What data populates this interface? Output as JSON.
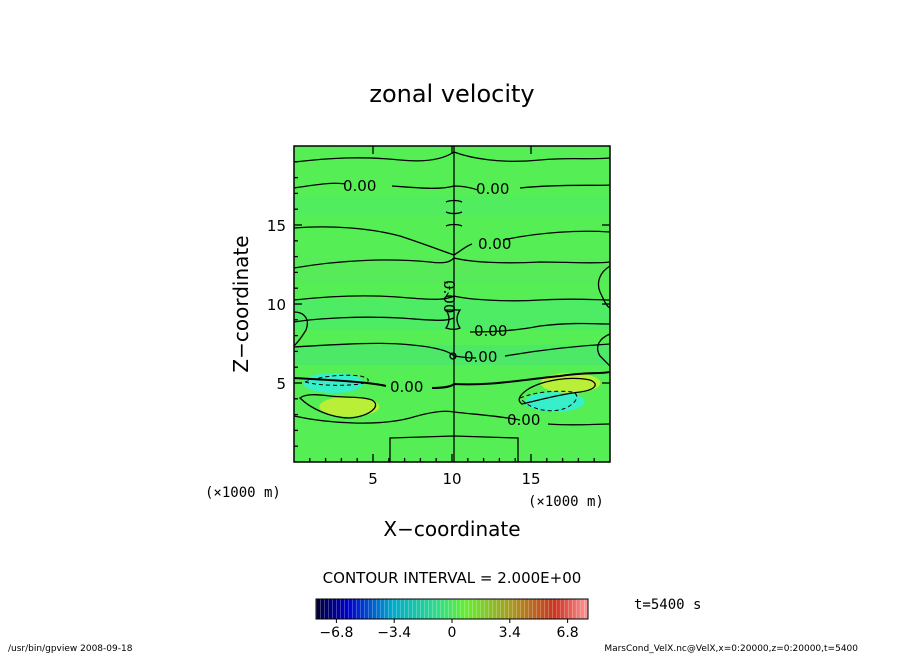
{
  "chart_data": {
    "type": "heatmap",
    "title": "zonal velocity",
    "xlabel": "X−coordinate",
    "ylabel": "Z−coordinate",
    "x_unit": "(×1000 m)",
    "y_unit": "(×1000 m)",
    "xlim": [
      0,
      20
    ],
    "ylim": [
      0,
      20
    ],
    "x_ticks": [
      5,
      10,
      15
    ],
    "y_ticks": [
      5,
      10,
      15
    ],
    "contour_interval_text": "CONTOUR INTERVAL = 2.000E+00",
    "contour_label": "0.00",
    "time_text": "t=5400 s",
    "colorbar": {
      "range": [
        -8,
        8
      ],
      "ticks": [
        -6.8,
        -3.4,
        0,
        3.4,
        6.8
      ],
      "tick_labels": [
        "−6.8",
        "−3.4",
        "0",
        "3.4",
        "6.8"
      ]
    },
    "features": [
      {
        "x": 3.5,
        "z": 3.5,
        "value": 3.4,
        "sign": "positive"
      },
      {
        "x": 2.5,
        "z": 5.0,
        "value": -3.4,
        "sign": "negative"
      },
      {
        "x": 16.5,
        "z": 3.8,
        "value": -3.4,
        "sign": "negative"
      },
      {
        "x": 17.5,
        "z": 5.0,
        "value": 3.4,
        "sign": "positive"
      }
    ]
  },
  "footer": {
    "left": "/usr/bin/gpview   2008-09-18",
    "right": "MarsCond_VelX.nc@VelX,x=0:20000,z=0:20000,t=5400"
  },
  "colors": {
    "background_field": "#55ee55",
    "positive": "#ccee33",
    "negative": "#33eedd"
  }
}
